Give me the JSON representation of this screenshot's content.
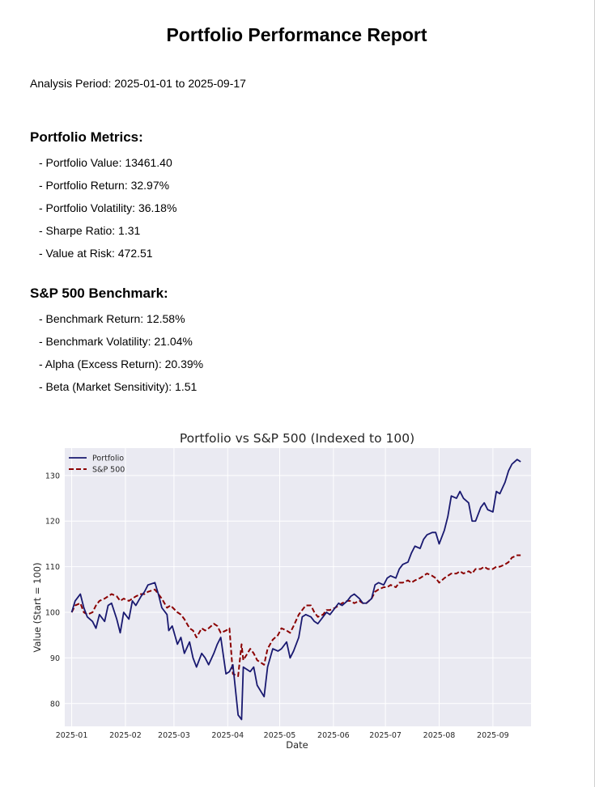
{
  "report": {
    "title": "Portfolio Performance Report",
    "period": "Analysis Period: 2025-01-01 to 2025-09-17"
  },
  "portfolio_metrics": {
    "heading": "Portfolio Metrics:",
    "items": [
      "- Portfolio Value: 13461.40",
      "- Portfolio Return: 32.97%",
      "- Portfolio Volatility: 36.18%",
      "- Sharpe Ratio: 1.31",
      "- Value at Risk: 472.51"
    ]
  },
  "benchmark": {
    "heading": "S&P 500 Benchmark:",
    "items": [
      "- Benchmark Return: 12.58%",
      "- Benchmark Volatility: 21.04%",
      "- Alpha (Excess Return): 20.39%",
      "- Beta (Market Sensitivity): 1.51"
    ]
  },
  "chart_data": {
    "type": "line",
    "title": "Portfolio vs S&P 500 (Indexed to 100)",
    "xlabel": "Date",
    "ylabel": "Value (Start = 100)",
    "x_axis_type": "date",
    "xlim": [
      "2024-12-28",
      "2025-09-23"
    ],
    "ylim": [
      75,
      136
    ],
    "xticks": [
      "2025-01-01",
      "2025-02-01",
      "2025-03-01",
      "2025-04-01",
      "2025-05-01",
      "2025-06-01",
      "2025-07-01",
      "2025-08-01",
      "2025-09-01"
    ],
    "xtick_labels": [
      "2025-01",
      "2025-02",
      "2025-03",
      "2025-04",
      "2025-05",
      "2025-06",
      "2025-07",
      "2025-08",
      "2025-09"
    ],
    "yticks": [
      80,
      90,
      100,
      110,
      120,
      130
    ],
    "grid": true,
    "legend_position": "top-left",
    "background": "#eaeaf2",
    "series": [
      {
        "name": "Portfolio",
        "color": "#191970",
        "style": "solid",
        "points": [
          [
            "2025-01-01",
            100
          ],
          [
            "2025-01-03",
            102.5
          ],
          [
            "2025-01-06",
            104
          ],
          [
            "2025-01-08",
            101
          ],
          [
            "2025-01-10",
            99
          ],
          [
            "2025-01-13",
            98
          ],
          [
            "2025-01-15",
            96.5
          ],
          [
            "2025-01-17",
            99.5
          ],
          [
            "2025-01-20",
            98
          ],
          [
            "2025-01-22",
            101.5
          ],
          [
            "2025-01-24",
            102
          ],
          [
            "2025-01-27",
            98.5
          ],
          [
            "2025-01-29",
            95.5
          ],
          [
            "2025-01-31",
            100
          ],
          [
            "2025-02-03",
            98.5
          ],
          [
            "2025-02-05",
            102.5
          ],
          [
            "2025-02-07",
            101.5
          ],
          [
            "2025-02-10",
            103.5
          ],
          [
            "2025-02-12",
            104.5
          ],
          [
            "2025-02-14",
            106
          ],
          [
            "2025-02-18",
            106.5
          ],
          [
            "2025-02-20",
            104
          ],
          [
            "2025-02-22",
            101
          ],
          [
            "2025-02-25",
            99.5
          ],
          [
            "2025-02-26",
            96
          ],
          [
            "2025-02-28",
            97
          ],
          [
            "2025-03-03",
            93
          ],
          [
            "2025-03-05",
            94.5
          ],
          [
            "2025-03-07",
            91
          ],
          [
            "2025-03-10",
            93.5
          ],
          [
            "2025-03-12",
            90
          ],
          [
            "2025-03-14",
            88
          ],
          [
            "2025-03-17",
            91
          ],
          [
            "2025-03-19",
            90
          ],
          [
            "2025-03-21",
            88.5
          ],
          [
            "2025-03-24",
            91
          ],
          [
            "2025-03-26",
            93
          ],
          [
            "2025-03-28",
            94.5
          ],
          [
            "2025-03-31",
            86.5
          ],
          [
            "2025-04-02",
            87
          ],
          [
            "2025-04-04",
            88.5
          ],
          [
            "2025-04-07",
            77.5
          ],
          [
            "2025-04-09",
            76.5
          ],
          [
            "2025-04-10",
            88
          ],
          [
            "2025-04-14",
            87
          ],
          [
            "2025-04-16",
            88
          ],
          [
            "2025-04-18",
            84
          ],
          [
            "2025-04-22",
            81.5
          ],
          [
            "2025-04-24",
            88
          ],
          [
            "2025-04-27",
            92
          ],
          [
            "2025-04-30",
            91.5
          ],
          [
            "2025-05-02",
            92
          ],
          [
            "2025-05-05",
            93.5
          ],
          [
            "2025-05-07",
            90
          ],
          [
            "2025-05-09",
            91.5
          ],
          [
            "2025-05-12",
            94.5
          ],
          [
            "2025-05-14",
            99
          ],
          [
            "2025-05-16",
            99.5
          ],
          [
            "2025-05-19",
            99
          ],
          [
            "2025-05-21",
            98
          ],
          [
            "2025-05-23",
            97.5
          ],
          [
            "2025-05-26",
            99
          ],
          [
            "2025-05-28",
            100
          ],
          [
            "2025-05-30",
            99.5
          ],
          [
            "2025-06-02",
            101
          ],
          [
            "2025-06-04",
            102
          ],
          [
            "2025-06-06",
            101.5
          ],
          [
            "2025-06-09",
            102.5
          ],
          [
            "2025-06-11",
            103.5
          ],
          [
            "2025-06-13",
            104
          ],
          [
            "2025-06-16",
            103
          ],
          [
            "2025-06-18",
            102
          ],
          [
            "2025-06-20",
            102
          ],
          [
            "2025-06-23",
            103
          ],
          [
            "2025-06-25",
            106
          ],
          [
            "2025-06-27",
            106.5
          ],
          [
            "2025-06-30",
            106
          ],
          [
            "2025-07-02",
            107.5
          ],
          [
            "2025-07-04",
            108
          ],
          [
            "2025-07-07",
            107.5
          ],
          [
            "2025-07-09",
            109.5
          ],
          [
            "2025-07-11",
            110.5
          ],
          [
            "2025-07-14",
            111
          ],
          [
            "2025-07-16",
            113
          ],
          [
            "2025-07-18",
            114.5
          ],
          [
            "2025-07-21",
            114
          ],
          [
            "2025-07-23",
            116
          ],
          [
            "2025-07-25",
            117
          ],
          [
            "2025-07-28",
            117.5
          ],
          [
            "2025-07-30",
            117.5
          ],
          [
            "2025-08-01",
            115
          ],
          [
            "2025-08-04",
            118
          ],
          [
            "2025-08-06",
            121
          ],
          [
            "2025-08-08",
            125.5
          ],
          [
            "2025-08-11",
            125
          ],
          [
            "2025-08-13",
            126.5
          ],
          [
            "2025-08-15",
            125
          ],
          [
            "2025-08-18",
            124
          ],
          [
            "2025-08-20",
            120
          ],
          [
            "2025-08-22",
            120
          ],
          [
            "2025-08-25",
            123
          ],
          [
            "2025-08-27",
            124
          ],
          [
            "2025-08-29",
            122.5
          ],
          [
            "2025-09-01",
            122
          ],
          [
            "2025-09-03",
            126.5
          ],
          [
            "2025-09-05",
            126
          ],
          [
            "2025-09-08",
            128.5
          ],
          [
            "2025-09-10",
            131
          ],
          [
            "2025-09-12",
            132.5
          ],
          [
            "2025-09-15",
            133.5
          ],
          [
            "2025-09-17",
            133
          ]
        ]
      },
      {
        "name": "S&P 500",
        "color": "#8b0000",
        "style": "dashed",
        "points": [
          [
            "2025-01-01",
            100
          ],
          [
            "2025-01-03",
            101.5
          ],
          [
            "2025-01-06",
            102
          ],
          [
            "2025-01-08",
            100
          ],
          [
            "2025-01-10",
            99.5
          ],
          [
            "2025-01-13",
            100
          ],
          [
            "2025-01-15",
            101.5
          ],
          [
            "2025-01-17",
            102.5
          ],
          [
            "2025-01-20",
            103
          ],
          [
            "2025-01-22",
            103.5
          ],
          [
            "2025-01-24",
            104
          ],
          [
            "2025-01-27",
            103.5
          ],
          [
            "2025-01-29",
            102.5
          ],
          [
            "2025-01-31",
            103
          ],
          [
            "2025-02-03",
            102.5
          ],
          [
            "2025-02-05",
            103
          ],
          [
            "2025-02-07",
            103.5
          ],
          [
            "2025-02-10",
            104
          ],
          [
            "2025-02-12",
            104
          ],
          [
            "2025-02-14",
            104.5
          ],
          [
            "2025-02-18",
            105
          ],
          [
            "2025-02-20",
            104
          ],
          [
            "2025-02-22",
            103
          ],
          [
            "2025-02-25",
            101
          ],
          [
            "2025-02-27",
            101.5
          ],
          [
            "2025-03-03",
            100
          ],
          [
            "2025-03-05",
            99.5
          ],
          [
            "2025-03-07",
            98.5
          ],
          [
            "2025-03-10",
            96.5
          ],
          [
            "2025-03-12",
            96
          ],
          [
            "2025-03-14",
            94.5
          ],
          [
            "2025-03-17",
            96.5
          ],
          [
            "2025-03-19",
            96
          ],
          [
            "2025-03-21",
            96.5
          ],
          [
            "2025-03-24",
            97.5
          ],
          [
            "2025-03-26",
            97
          ],
          [
            "2025-03-28",
            95.5
          ],
          [
            "2025-03-31",
            96
          ],
          [
            "2025-04-02",
            96.5
          ],
          [
            "2025-04-04",
            86.5
          ],
          [
            "2025-04-07",
            86
          ],
          [
            "2025-04-09",
            93
          ],
          [
            "2025-04-10",
            89.5
          ],
          [
            "2025-04-14",
            92
          ],
          [
            "2025-04-16",
            91
          ],
          [
            "2025-04-18",
            89.5
          ],
          [
            "2025-04-22",
            88.5
          ],
          [
            "2025-04-24",
            92
          ],
          [
            "2025-04-27",
            94
          ],
          [
            "2025-04-30",
            95
          ],
          [
            "2025-05-02",
            96.5
          ],
          [
            "2025-05-05",
            96
          ],
          [
            "2025-05-07",
            95.5
          ],
          [
            "2025-05-09",
            97
          ],
          [
            "2025-05-12",
            99.5
          ],
          [
            "2025-05-14",
            100.5
          ],
          [
            "2025-05-16",
            101.5
          ],
          [
            "2025-05-19",
            101.5
          ],
          [
            "2025-05-21",
            100
          ],
          [
            "2025-05-23",
            99
          ],
          [
            "2025-05-26",
            99.5
          ],
          [
            "2025-05-28",
            100.5
          ],
          [
            "2025-05-30",
            100.5
          ],
          [
            "2025-06-02",
            101
          ],
          [
            "2025-06-04",
            101.5
          ],
          [
            "2025-06-06",
            102
          ],
          [
            "2025-06-09",
            102.5
          ],
          [
            "2025-06-11",
            102.5
          ],
          [
            "2025-06-13",
            102
          ],
          [
            "2025-06-16",
            102.5
          ],
          [
            "2025-06-18",
            102
          ],
          [
            "2025-06-20",
            102
          ],
          [
            "2025-06-23",
            103
          ],
          [
            "2025-06-25",
            104.5
          ],
          [
            "2025-06-27",
            105
          ],
          [
            "2025-06-30",
            105.5
          ],
          [
            "2025-07-02",
            105.5
          ],
          [
            "2025-07-04",
            106
          ],
          [
            "2025-07-07",
            105.5
          ],
          [
            "2025-07-09",
            106.5
          ],
          [
            "2025-07-11",
            106.5
          ],
          [
            "2025-07-14",
            107
          ],
          [
            "2025-07-16",
            106.5
          ],
          [
            "2025-07-18",
            107
          ],
          [
            "2025-07-21",
            107.5
          ],
          [
            "2025-07-23",
            108
          ],
          [
            "2025-07-25",
            108.5
          ],
          [
            "2025-07-28",
            108
          ],
          [
            "2025-07-30",
            107.5
          ],
          [
            "2025-08-01",
            106.5
          ],
          [
            "2025-08-04",
            107.5
          ],
          [
            "2025-08-06",
            108
          ],
          [
            "2025-08-08",
            108.5
          ],
          [
            "2025-08-11",
            108.5
          ],
          [
            "2025-08-13",
            109
          ],
          [
            "2025-08-15",
            108.5
          ],
          [
            "2025-08-18",
            109
          ],
          [
            "2025-08-20",
            108.5
          ],
          [
            "2025-08-22",
            109.5
          ],
          [
            "2025-08-25",
            109.5
          ],
          [
            "2025-08-27",
            110
          ],
          [
            "2025-08-29",
            109.5
          ],
          [
            "2025-09-01",
            109.5
          ],
          [
            "2025-09-03",
            110
          ],
          [
            "2025-09-05",
            110
          ],
          [
            "2025-09-08",
            110.5
          ],
          [
            "2025-09-10",
            111
          ],
          [
            "2025-09-12",
            112
          ],
          [
            "2025-09-15",
            112.5
          ],
          [
            "2025-09-17",
            112.5
          ]
        ]
      }
    ]
  }
}
